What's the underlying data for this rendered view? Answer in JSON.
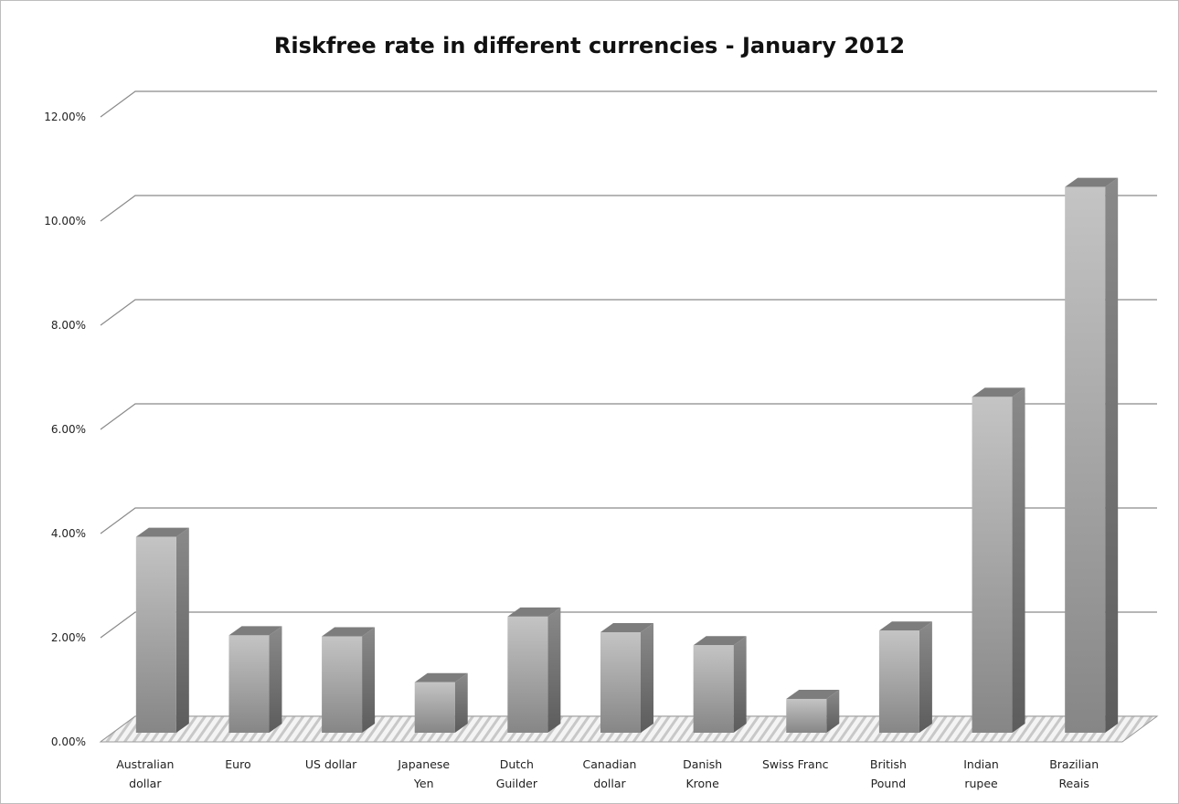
{
  "chart_data": {
    "type": "bar",
    "title": "Riskfree rate in different currencies - January 2012",
    "xlabel": "",
    "ylabel": "",
    "ylim": [
      0,
      0.12
    ],
    "yticks": [
      "0.00%",
      "2.00%",
      "4.00%",
      "6.00%",
      "8.00%",
      "10.00%",
      "12.00%"
    ],
    "categories": [
      [
        "Australian",
        "dollar"
      ],
      [
        "Euro"
      ],
      [
        "US dollar"
      ],
      [
        "Japanese",
        "Yen"
      ],
      [
        "Dutch",
        "Guilder"
      ],
      [
        "Canadian",
        "dollar"
      ],
      [
        "Danish",
        "Krone"
      ],
      [
        "Swiss Franc"
      ],
      [
        "British",
        "Pound"
      ],
      [
        "Indian",
        "rupee"
      ],
      [
        "Brazilian",
        "Reais"
      ]
    ],
    "values": [
      0.0376,
      0.0187,
      0.0185,
      0.0097,
      0.0223,
      0.0193,
      0.0168,
      0.0065,
      0.0196,
      0.0645,
      0.1048
    ],
    "grid": true,
    "legend": "none",
    "bar_color": "#9a9a9a"
  }
}
